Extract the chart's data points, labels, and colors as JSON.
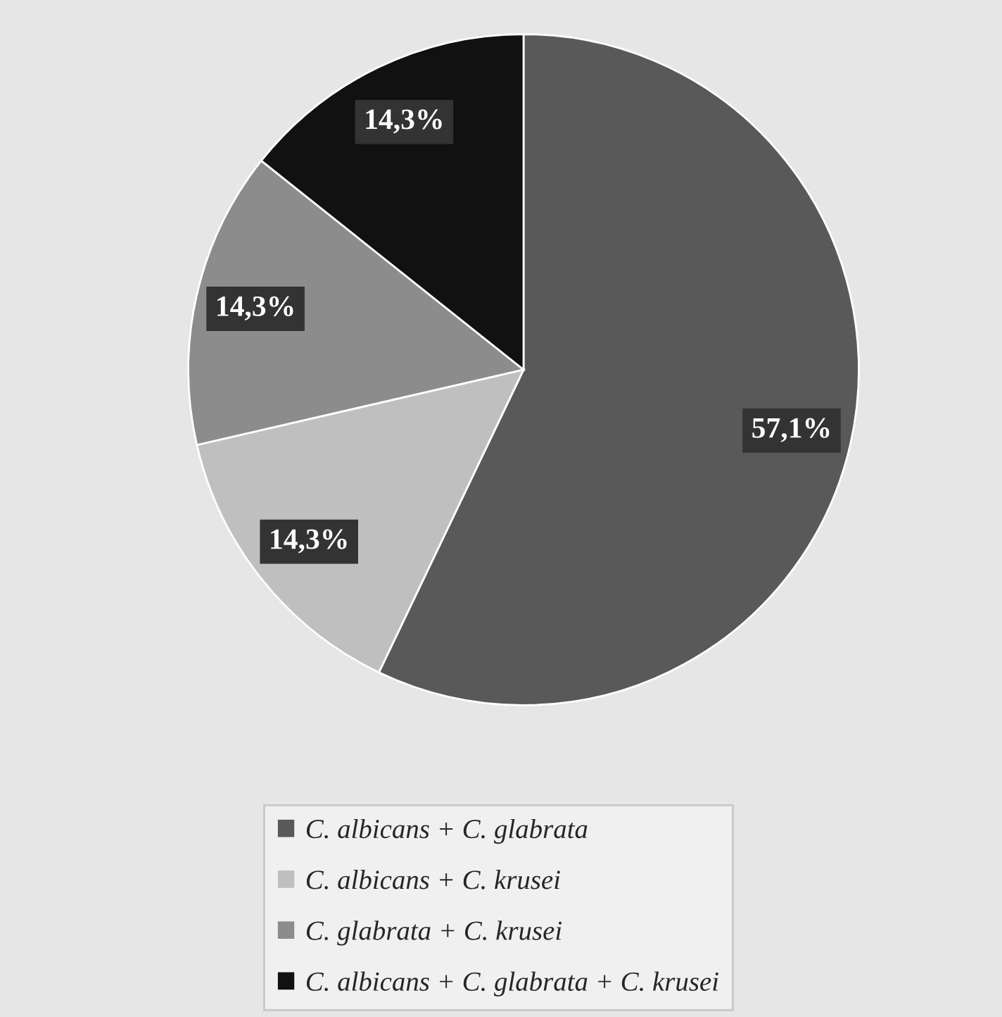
{
  "chart_data": {
    "type": "pie",
    "categories": [
      "C. albicans + C. glabrata",
      "C. albicans + C. krusei",
      "C. glabrata + C. krusei",
      "C. albicans + C. glabrata + C. krusei"
    ],
    "values": [
      57.1,
      14.3,
      14.3,
      14.3
    ],
    "value_labels": [
      "57,1%",
      "14,3%",
      "14,3%",
      "14,3%"
    ],
    "colors": [
      "#595959",
      "#bfbfbf",
      "#8c8c8c",
      "#111111"
    ],
    "legend": "bottom"
  }
}
